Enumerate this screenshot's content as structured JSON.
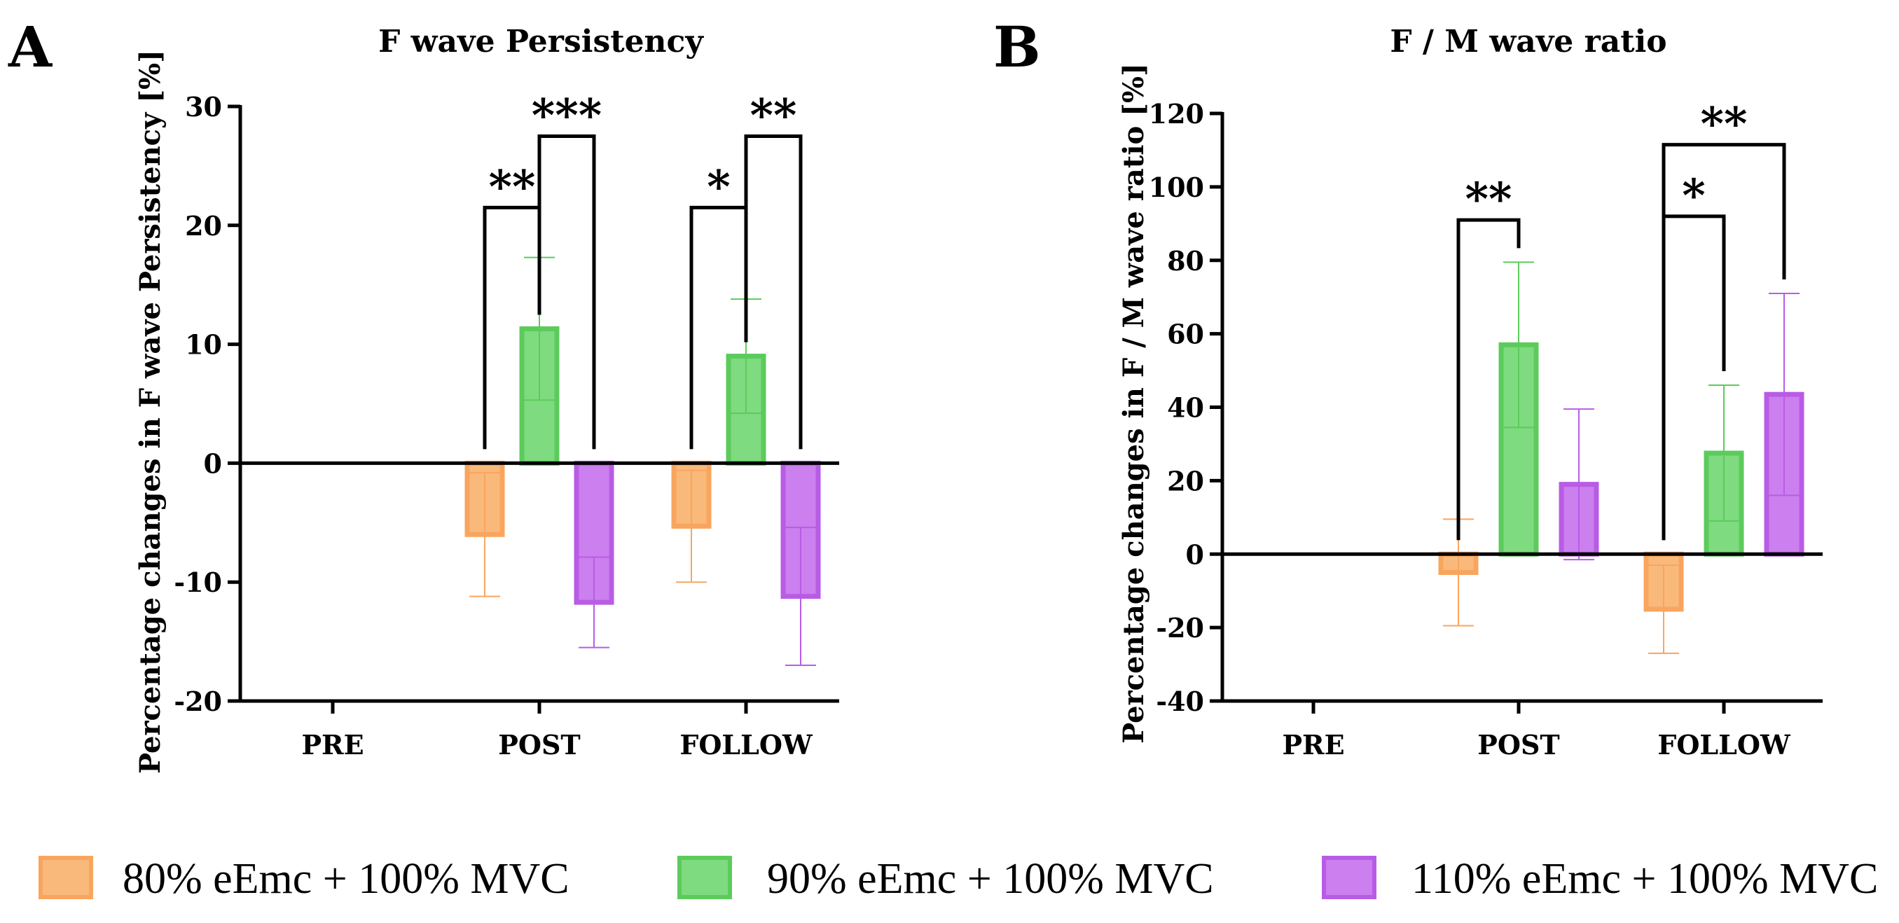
{
  "colors": {
    "series_fill": [
      "#F9B97A",
      "#7FDB7F",
      "#CC7FEE"
    ],
    "series_stroke": [
      "#F9A55E",
      "#5CCB5C",
      "#B85CE6"
    ],
    "axis": "#000000"
  },
  "legend": [
    {
      "label": "80% eEmc + 100% MVC"
    },
    {
      "label": "90% eEmc + 100% MVC"
    },
    {
      "label": "110% eEmc + 100% MVC"
    }
  ],
  "chart_data": [
    {
      "panel_letter": "A",
      "type": "bar",
      "title": "F wave Persistency",
      "ylabel": "Percentage changes in F wave Persistency [%]",
      "xlabel": "",
      "categories": [
        "PRE",
        "POST",
        "FOLLOW"
      ],
      "ylim": [
        -20,
        30
      ],
      "yticks": [
        -20,
        -10,
        0,
        10,
        20,
        30
      ],
      "ytick_labels": [
        "-20",
        "-10",
        "0",
        "10",
        "20",
        "30"
      ],
      "series": [
        {
          "name": "80% eEmc + 100% MVC",
          "values": [
            null,
            -6,
            -5.3
          ],
          "errors": [
            null,
            5.2,
            4.7
          ]
        },
        {
          "name": "90% eEmc + 100% MVC",
          "values": [
            null,
            11.3,
            9.0
          ],
          "errors": [
            null,
            6.0,
            4.8
          ]
        },
        {
          "name": "110% eEmc + 100% MVC",
          "values": [
            null,
            -11.7,
            -11.2
          ],
          "errors": [
            null,
            3.8,
            5.8
          ]
        }
      ],
      "significance": [
        {
          "category": 1,
          "from_series": 0,
          "to_series": 1,
          "label": "**",
          "bracket_y": 21.5
        },
        {
          "category": 1,
          "from_series": 1,
          "to_series": 2,
          "label": "***",
          "bracket_y": 27.5
        },
        {
          "category": 2,
          "from_series": 0,
          "to_series": 1,
          "label": "*",
          "bracket_y": 21.5
        },
        {
          "category": 2,
          "from_series": 1,
          "to_series": 2,
          "label": "**",
          "bracket_y": 27.5
        }
      ]
    },
    {
      "panel_letter": "B",
      "type": "bar",
      "title": "F / M wave ratio",
      "ylabel": "Percentage changes in F / M wave ratio [%]",
      "xlabel": "",
      "categories": [
        "PRE",
        "POST",
        "FOLLOW"
      ],
      "ylim": [
        -40,
        120
      ],
      "yticks": [
        -40,
        -20,
        0,
        20,
        40,
        60,
        80,
        100,
        120
      ],
      "ytick_labels": [
        "-40",
        "-20",
        "0",
        "20",
        "40",
        "60",
        "80",
        "100",
        "120"
      ],
      "series": [
        {
          "name": "80% eEmc + 100% MVC",
          "values": [
            null,
            -5,
            -15
          ],
          "errors": [
            null,
            14.5,
            12
          ]
        },
        {
          "name": "90% eEmc + 100% MVC",
          "values": [
            null,
            57,
            27.5
          ],
          "errors": [
            null,
            22.5,
            18.5
          ]
        },
        {
          "name": "110% eEmc + 100% MVC",
          "values": [
            null,
            19,
            43.5
          ],
          "errors": [
            null,
            20.5,
            27.5
          ]
        }
      ],
      "significance": [
        {
          "category": 1,
          "from_series": 0,
          "to_series": 1,
          "label": "**",
          "bracket_y": 91
        },
        {
          "category": 2,
          "from_series": 0,
          "to_series": 1,
          "label": "*",
          "bracket_y": 92
        },
        {
          "category": 2,
          "from_series": 0,
          "to_series": 2,
          "label": "**",
          "bracket_y": 111.5
        }
      ]
    }
  ]
}
